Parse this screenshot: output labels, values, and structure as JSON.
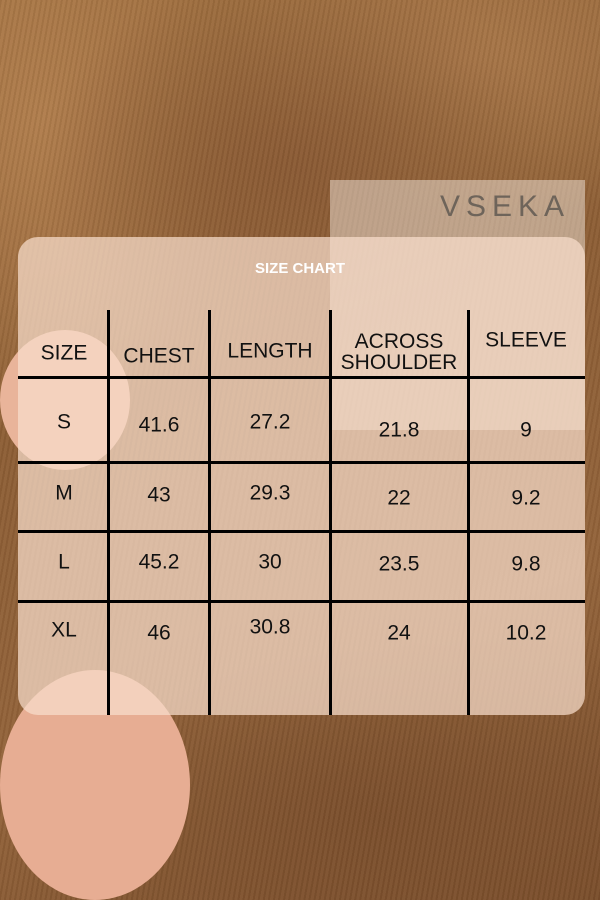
{
  "title": "SIZE CHART",
  "label_logo": "VSEKA",
  "colors": {
    "panel": "#f8decc",
    "text": "#111111",
    "title": "#ffffff",
    "grid": "#000000"
  },
  "chart_data": {
    "type": "table",
    "title": "SIZE CHART",
    "columns": [
      "SIZE",
      "CHEST",
      "LENGTH",
      "ACROSS SHOULDER",
      "SLEEVE"
    ],
    "rows": [
      [
        "S",
        "41.6",
        "27.2",
        "21.8",
        "9"
      ],
      [
        "M",
        "43",
        "29.3",
        "22",
        "9.2"
      ],
      [
        "L",
        "45.2",
        "30",
        "23.5",
        "9.8"
      ],
      [
        "XL",
        "46",
        "30.8",
        "24",
        "10.2"
      ]
    ]
  }
}
